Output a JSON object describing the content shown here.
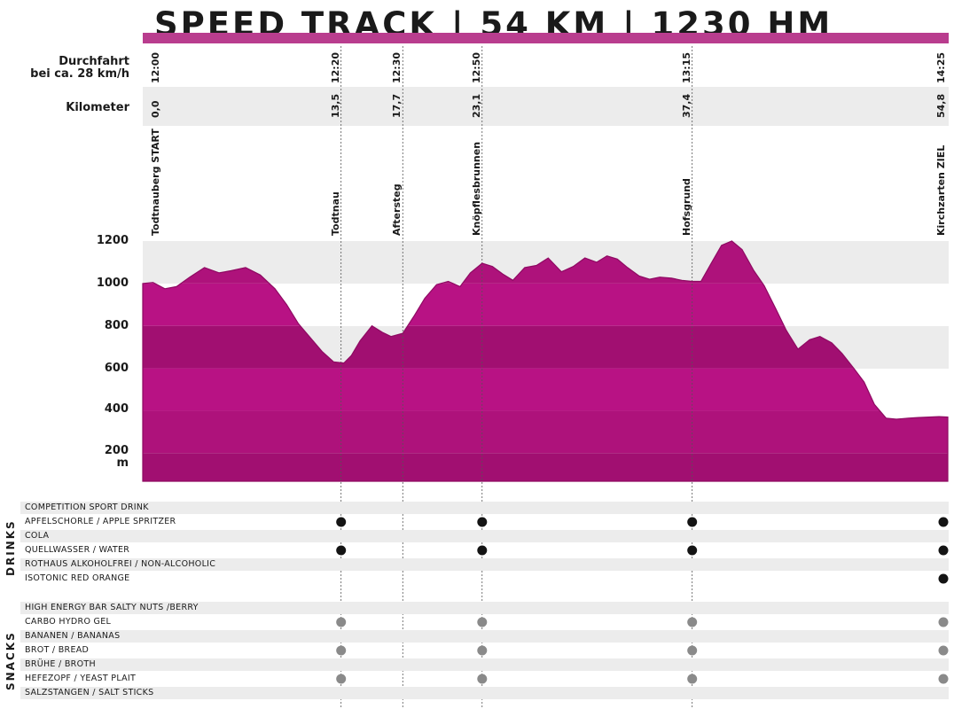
{
  "title": "SPEED TRACK | 54 KM | 1230 HM",
  "header": {
    "passage_label_line1": "Durchfahrt",
    "passage_label_line2": "bei ca. 28 km/h",
    "km_label": "Kilometer"
  },
  "checkpoints": [
    {
      "name": "Todtnauberg START",
      "km": 0.0,
      "km_text": "0,0",
      "time": "12:00"
    },
    {
      "name": "Todtnau",
      "km": 13.5,
      "km_text": "13,5",
      "time": "12:20"
    },
    {
      "name": "Aftersteg",
      "km": 17.7,
      "km_text": "17,7",
      "time": "12:30"
    },
    {
      "name": "Knöpflesbrunnen",
      "km": 23.1,
      "km_text": "23,1",
      "time": "12:50"
    },
    {
      "name": "Hofsgrund",
      "km": 37.4,
      "km_text": "37,4",
      "time": "13:15"
    },
    {
      "name": "Kirchzarten ZIEL",
      "km": 54.8,
      "km_text": "54,8",
      "time": "14:25"
    }
  ],
  "colors": {
    "accent": "#b93d8e",
    "profile": [
      "#a10f71",
      "#ae127b",
      "#b81284"
    ],
    "dot_drink": "#141414",
    "dot_snack": "#8a8a8a",
    "band": "#ececec"
  },
  "chart_data": {
    "type": "area",
    "title": "SPEED TRACK | 54 KM | 1230 HM",
    "xlabel": "Kilometer",
    "ylabel": "m",
    "xlim": [
      0,
      54.8
    ],
    "ylim": [
      60,
      1200
    ],
    "yticks": [
      {
        "value": 1200,
        "label": "1200"
      },
      {
        "value": 1000,
        "label": "1000"
      },
      {
        "value": 800,
        "label": "800"
      },
      {
        "value": 600,
        "label": "600"
      },
      {
        "value": 400,
        "label": "400"
      },
      {
        "value": 200,
        "label": "200"
      }
    ],
    "y_unit": "m",
    "x": [
      0,
      0.7,
      1.5,
      2.3,
      3.2,
      4.2,
      5.2,
      6.0,
      7.0,
      8.0,
      9.0,
      9.8,
      10.6,
      11.4,
      12.2,
      13.0,
      13.7,
      14.2,
      14.8,
      15.6,
      16.3,
      16.9,
      17.7,
      18.5,
      19.2,
      20.0,
      20.8,
      21.6,
      22.3,
      23.1,
      23.8,
      24.5,
      25.2,
      26.0,
      26.8,
      27.6,
      28.5,
      29.3,
      30.1,
      30.9,
      31.6,
      32.3,
      33.0,
      33.8,
      34.5,
      35.2,
      36.0,
      36.7,
      37.4,
      38.0,
      38.7,
      39.4,
      40.1,
      40.8,
      41.6,
      42.3,
      43.1,
      43.8,
      44.6,
      45.4,
      46.1,
      46.9,
      47.6,
      48.4,
      49.1,
      49.8,
      50.6,
      51.3,
      52.1,
      52.8,
      53.5,
      54.2,
      54.8
    ],
    "series": [
      {
        "values": [
          1000,
          1005,
          975,
          985,
          1030,
          1075,
          1050,
          1060,
          1075,
          1040,
          975,
          900,
          810,
          745,
          680,
          630,
          625,
          660,
          730,
          800,
          770,
          750,
          765,
          850,
          930,
          995,
          1010,
          985,
          1050,
          1095,
          1080,
          1045,
          1015,
          1075,
          1085,
          1120,
          1055,
          1080,
          1120,
          1100,
          1130,
          1115,
          1075,
          1035,
          1020,
          1030,
          1025,
          1015,
          1010,
          1010,
          1095,
          1180,
          1200,
          1160,
          1060,
          990,
          880,
          780,
          690,
          735,
          750,
          720,
          670,
          600,
          535,
          430,
          365,
          360,
          365,
          368,
          370,
          372,
          370
        ]
      }
    ],
    "grid": false,
    "legend": "none"
  },
  "drinks": {
    "group_label": "DRINKS",
    "items": [
      {
        "label": "COMPETITION SPORT DRINK",
        "at": [
          false,
          true,
          false,
          true,
          true,
          false
        ]
      },
      {
        "label": "APFELSCHORLE / APPLE SPRITZER",
        "at": [
          false,
          true,
          false,
          true,
          true,
          true
        ]
      },
      {
        "label": "COLA",
        "at": [
          false,
          true,
          false,
          true,
          true,
          true
        ]
      },
      {
        "label": "QUELLWASSER / WATER",
        "at": [
          false,
          true,
          false,
          true,
          true,
          true
        ]
      },
      {
        "label": "ROTHAUS ALKOHOLFREI / NON-ALCOHOLIC",
        "at": [
          false,
          false,
          false,
          false,
          true,
          true
        ]
      },
      {
        "label": "ISOTONIC RED ORANGE",
        "at": [
          false,
          false,
          false,
          false,
          false,
          true
        ]
      }
    ]
  },
  "snacks": {
    "group_label": "SNACKS",
    "items": [
      {
        "label": "HIGH ENERGY BAR SALTY NUTS /BERRY",
        "at": [
          false,
          true,
          false,
          true,
          true,
          true
        ]
      },
      {
        "label": "CARBO HYDRO GEL",
        "at": [
          false,
          true,
          false,
          true,
          true,
          true
        ]
      },
      {
        "label": "BANANEN / BANANAS",
        "at": [
          false,
          true,
          false,
          true,
          true,
          true
        ]
      },
      {
        "label": "BROT / BREAD",
        "at": [
          false,
          true,
          false,
          true,
          true,
          true
        ]
      },
      {
        "label": "BRÜHE / BROTH",
        "at": [
          false,
          true,
          false,
          true,
          false,
          false
        ]
      },
      {
        "label": "HEFEZOPF / YEAST PLAIT",
        "at": [
          false,
          true,
          false,
          true,
          true,
          true
        ]
      },
      {
        "label": "SALZSTANGEN / SALT STICKS",
        "at": [
          false,
          true,
          false,
          true,
          true,
          false
        ]
      }
    ]
  }
}
